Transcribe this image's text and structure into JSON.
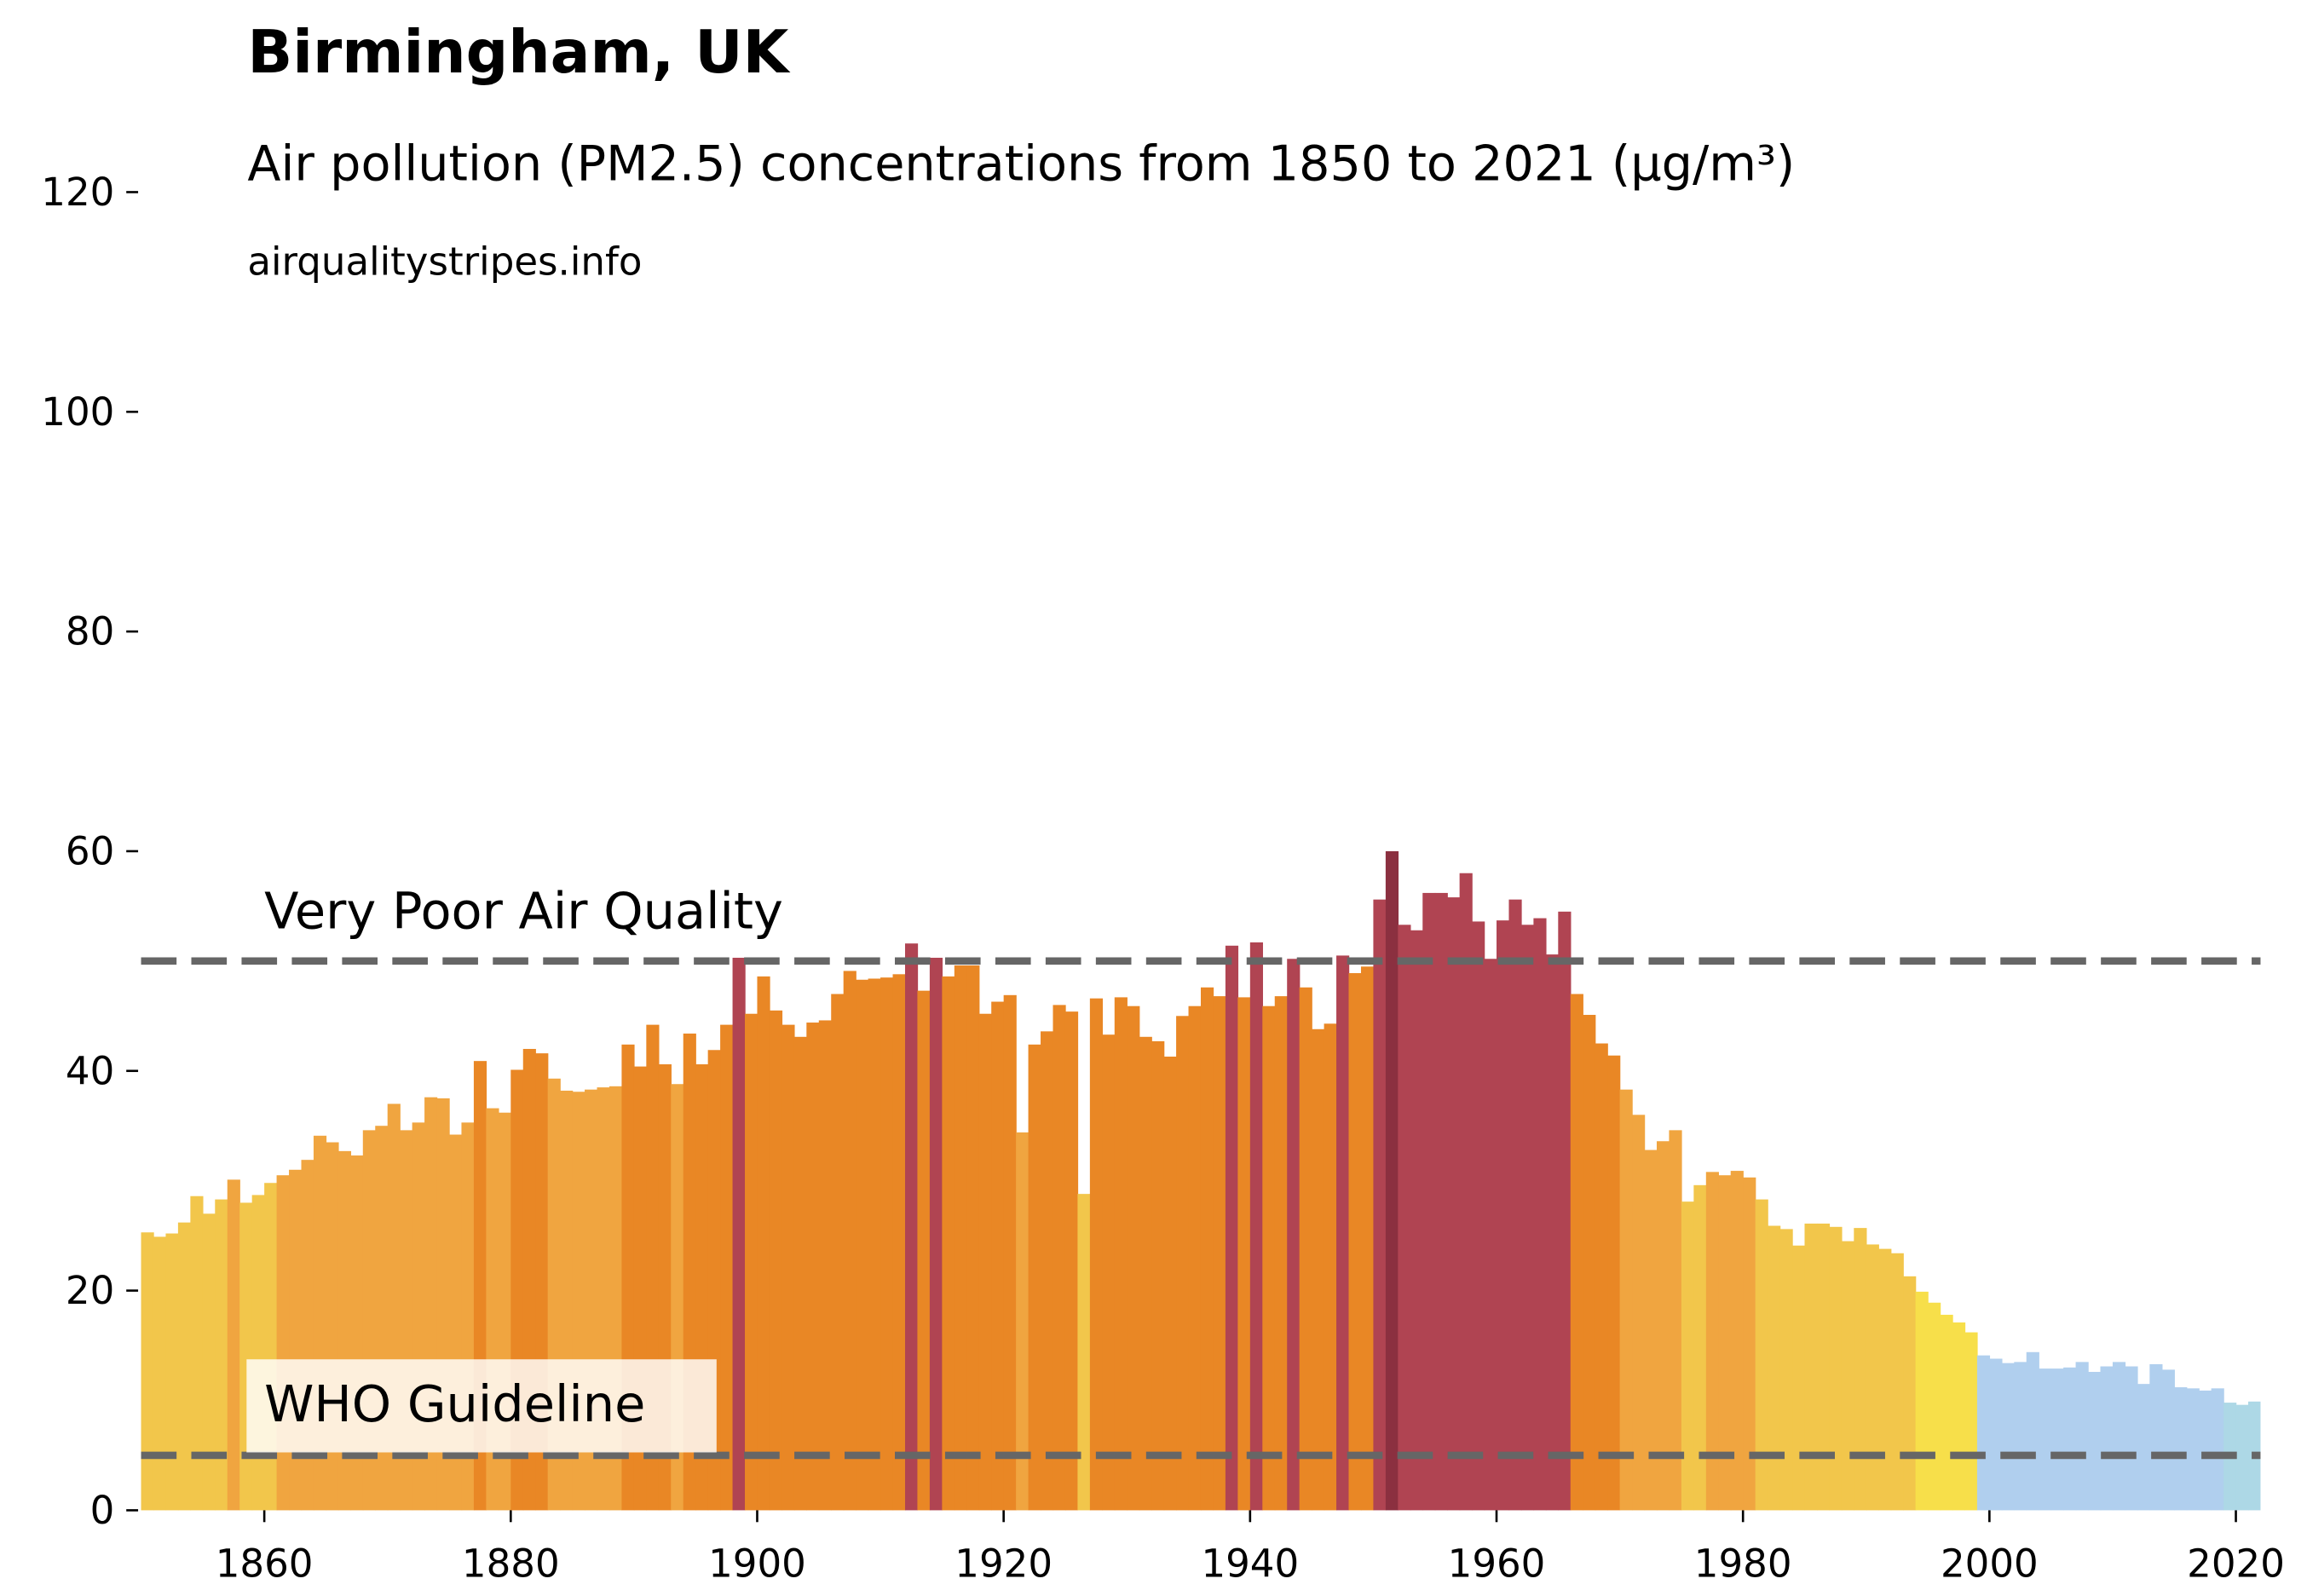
{
  "chart_data": {
    "type": "bar",
    "title": "Birmingham, UK",
    "subtitle": "Air pollution (PM2.5) concentrations from 1850 to 2021 (µg/m³)",
    "source": "airqualitystripes.info",
    "x": [
      1850,
      1851,
      1852,
      1853,
      1854,
      1855,
      1856,
      1857,
      1858,
      1859,
      1860,
      1861,
      1862,
      1863,
      1864,
      1865,
      1866,
      1867,
      1868,
      1869,
      1870,
      1871,
      1872,
      1873,
      1874,
      1875,
      1876,
      1877,
      1878,
      1879,
      1880,
      1881,
      1882,
      1883,
      1884,
      1885,
      1886,
      1887,
      1888,
      1889,
      1890,
      1891,
      1892,
      1893,
      1894,
      1895,
      1896,
      1897,
      1898,
      1899,
      1900,
      1901,
      1902,
      1903,
      1904,
      1905,
      1906,
      1907,
      1908,
      1909,
      1910,
      1911,
      1912,
      1913,
      1914,
      1915,
      1916,
      1917,
      1918,
      1919,
      1920,
      1921,
      1922,
      1923,
      1924,
      1925,
      1926,
      1927,
      1928,
      1929,
      1930,
      1931,
      1932,
      1933,
      1934,
      1935,
      1936,
      1937,
      1938,
      1939,
      1940,
      1941,
      1942,
      1943,
      1944,
      1945,
      1946,
      1947,
      1948,
      1949,
      1950,
      1951,
      1952,
      1953,
      1954,
      1955,
      1956,
      1957,
      1958,
      1959,
      1960,
      1961,
      1962,
      1963,
      1964,
      1965,
      1966,
      1967,
      1968,
      1969,
      1970,
      1971,
      1972,
      1973,
      1974,
      1975,
      1976,
      1977,
      1978,
      1979,
      1980,
      1981,
      1982,
      1983,
      1984,
      1985,
      1986,
      1987,
      1988,
      1989,
      1990,
      1991,
      1992,
      1993,
      1994,
      1995,
      1996,
      1997,
      1998,
      1999,
      2000,
      2001,
      2002,
      2003,
      2004,
      2005,
      2006,
      2007,
      2008,
      2009,
      2010,
      2011,
      2012,
      2013,
      2014,
      2015,
      2016,
      2017,
      2018,
      2019,
      2020,
      2021
    ],
    "values": [
      25.3,
      24.9,
      25.2,
      26.2,
      28.6,
      27.0,
      28.3,
      30.1,
      28.0,
      28.7,
      29.8,
      30.5,
      31.0,
      31.9,
      34.1,
      33.5,
      32.7,
      32.3,
      34.6,
      35.0,
      37.0,
      34.6,
      35.3,
      37.6,
      37.5,
      34.2,
      35.3,
      40.9,
      36.6,
      36.2,
      40.1,
      42.0,
      41.6,
      39.3,
      38.2,
      38.1,
      38.3,
      38.5,
      38.6,
      42.4,
      40.4,
      44.2,
      40.6,
      38.8,
      43.4,
      40.6,
      41.9,
      44.2,
      50.3,
      45.2,
      48.6,
      45.5,
      44.2,
      43.1,
      44.4,
      44.6,
      47.0,
      49.1,
      48.3,
      48.4,
      48.5,
      48.8,
      51.6,
      47.3,
      50.3,
      48.6,
      49.6,
      49.6,
      45.2,
      46.3,
      46.9,
      34.4,
      42.4,
      43.6,
      46.0,
      45.4,
      28.8,
      46.6,
      43.3,
      46.7,
      45.9,
      43.1,
      42.7,
      41.3,
      45.0,
      45.9,
      47.6,
      46.8,
      51.4,
      46.7,
      51.7,
      45.9,
      46.8,
      50.2,
      47.6,
      43.8,
      44.3,
      50.5,
      48.9,
      49.5,
      55.6,
      60.0,
      53.3,
      52.8,
      56.2,
      56.2,
      55.8,
      58.0,
      53.6,
      50.2,
      53.7,
      55.6,
      53.3,
      53.9,
      50.6,
      54.5,
      47.0,
      45.1,
      42.5,
      41.4,
      38.3,
      36.0,
      32.8,
      33.6,
      34.6,
      28.1,
      29.6,
      30.8,
      30.5,
      30.9,
      30.3,
      28.3,
      25.9,
      25.6,
      24.1,
      26.1,
      26.1,
      25.8,
      24.5,
      25.7,
      24.2,
      23.8,
      23.4,
      21.3,
      19.9,
      18.9,
      17.8,
      17.1,
      16.2,
      14.1,
      13.8,
      13.4,
      13.5,
      14.4,
      12.9,
      12.9,
      13.0,
      13.5,
      12.6,
      13.1,
      13.5,
      13.1,
      11.5,
      13.3,
      12.8,
      11.2,
      11.1,
      10.9,
      11.1,
      9.8,
      9.6,
      9.9
    ],
    "colors": [
      "#f2c64b",
      "#f2c64b",
      "#f2c64b",
      "#f2c64b",
      "#f2c64b",
      "#f2c64b",
      "#f2c64b",
      "#f0a540",
      "#f2c64b",
      "#f2c64b",
      "#f2c64b",
      "#f0a540",
      "#f0a540",
      "#f0a540",
      "#f0a540",
      "#f0a540",
      "#f0a540",
      "#f0a540",
      "#f0a540",
      "#f0a540",
      "#f0a540",
      "#f0a540",
      "#f0a540",
      "#f0a540",
      "#f0a540",
      "#f0a540",
      "#f0a540",
      "#e98725",
      "#f0a540",
      "#f0a540",
      "#e98725",
      "#e98725",
      "#e98725",
      "#f0a540",
      "#f0a540",
      "#f0a540",
      "#f0a540",
      "#f0a540",
      "#f0a540",
      "#e98725",
      "#e98725",
      "#e98725",
      "#e98725",
      "#f0a540",
      "#e98725",
      "#e98725",
      "#e98725",
      "#e98725",
      "#b04452",
      "#e98725",
      "#e98725",
      "#e98725",
      "#e98725",
      "#e98725",
      "#e98725",
      "#e98725",
      "#e98725",
      "#e98725",
      "#e98725",
      "#e98725",
      "#e98725",
      "#e98725",
      "#b04452",
      "#e98725",
      "#b04452",
      "#e98725",
      "#e98725",
      "#e98725",
      "#e98725",
      "#e98725",
      "#e98725",
      "#f0a540",
      "#e98725",
      "#e98725",
      "#e98725",
      "#e98725",
      "#f2c64b",
      "#e98725",
      "#e98725",
      "#e98725",
      "#e98725",
      "#e98725",
      "#e98725",
      "#e98725",
      "#e98725",
      "#e98725",
      "#e98725",
      "#e98725",
      "#b04452",
      "#e98725",
      "#b04452",
      "#e98725",
      "#e98725",
      "#b04452",
      "#e98725",
      "#e98725",
      "#e98725",
      "#b04452",
      "#e98725",
      "#e98725",
      "#b04452",
      "#8b3040",
      "#b04452",
      "#b04452",
      "#b04452",
      "#b04452",
      "#b04452",
      "#b04452",
      "#b04452",
      "#b04452",
      "#b04452",
      "#b04452",
      "#b04452",
      "#b04452",
      "#b04452",
      "#b04452",
      "#e98725",
      "#e98725",
      "#e98725",
      "#e98725",
      "#f0a540",
      "#f0a540",
      "#f0a540",
      "#f0a540",
      "#f0a540",
      "#f2c64b",
      "#f2c64b",
      "#f0a540",
      "#f0a540",
      "#f0a540",
      "#f0a540",
      "#f2c64b",
      "#f2c64b",
      "#f2c64b",
      "#f2c64b",
      "#f2c64b",
      "#f2c64b",
      "#f2c64b",
      "#f2c64b",
      "#f2c64b",
      "#f2c64b",
      "#f2c64b",
      "#f2c64b",
      "#f2c64b",
      "#f7df4a",
      "#f7df4a",
      "#f7df4a",
      "#f7df4a",
      "#f7df4a",
      "#b0cfee",
      "#b0cfee",
      "#b0cfee",
      "#b0cfee",
      "#b0cfee",
      "#b0cfee",
      "#b0cfee",
      "#b0cfee",
      "#b0cfee",
      "#b0cfee",
      "#b0cfee",
      "#b0cfee",
      "#b0cfee",
      "#b0cfee",
      "#b0cfee",
      "#b0cfee",
      "#b0cfee",
      "#b0cfee",
      "#b0cfee",
      "#b0cfee",
      "#add8e6",
      "#add8e6",
      "#add8e6"
    ],
    "xlim": [
      1850,
      2022
    ],
    "ylim": [
      0,
      120
    ],
    "xticks": [
      1860,
      1880,
      1900,
      1920,
      1940,
      1960,
      1980,
      2000,
      2020
    ],
    "yticks": [
      0,
      20,
      40,
      60,
      80,
      100,
      120
    ],
    "reference_lines": [
      {
        "value": 50,
        "label": "Very Poor Air Quality"
      },
      {
        "value": 5,
        "label": "WHO Guideline"
      }
    ]
  }
}
